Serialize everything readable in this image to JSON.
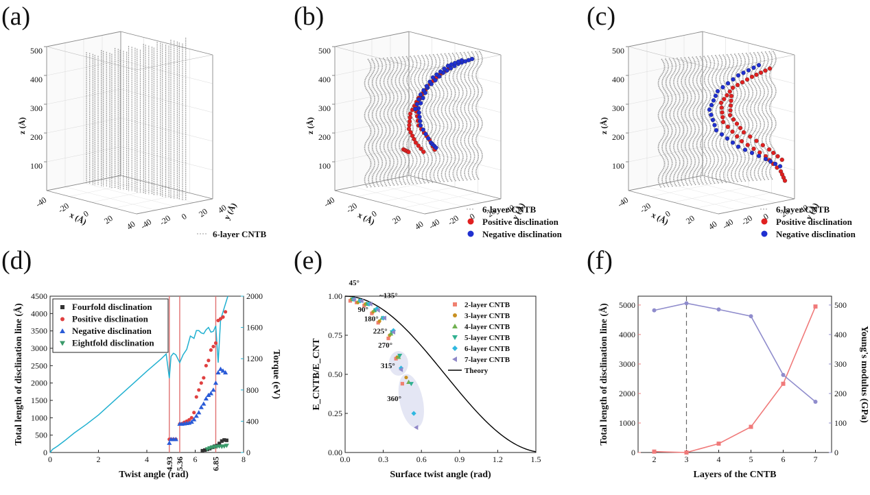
{
  "panels": {
    "a": {
      "label": "(a)"
    },
    "b": {
      "label": "(b)"
    },
    "c": {
      "label": "(c)"
    },
    "d": {
      "label": "(d)"
    },
    "e": {
      "label": "(e)"
    },
    "f": {
      "label": "(f)"
    }
  },
  "threeD": {
    "zlabel": "z (Å)",
    "xlabel": "x (Å)",
    "ylabel": "y (Å)",
    "zticks": [
      "500",
      "400",
      "300",
      "200",
      "100"
    ],
    "xticks_a": [
      "-40",
      "-20",
      "0",
      "20",
      "40"
    ],
    "yticks_a": [
      "40",
      "20",
      "0",
      "-20",
      "-40"
    ],
    "xticks_bc": [
      "-40",
      "-20",
      "0",
      "20",
      "40"
    ],
    "yticks_bc": [
      "40",
      "20",
      "0",
      "-20",
      "-40"
    ],
    "legend_cntb": "6-layer CNTB",
    "legend_pos": "Positive disclination",
    "legend_neg": "Negative disclination",
    "colors": {
      "cntb": "#8a8a8a",
      "pos": "#e02020",
      "neg": "#2030d0"
    }
  },
  "chart_data": [
    {
      "id": "d",
      "type": "scatter",
      "xlabel": "Twist angle (rad)",
      "ylabel": "Total length of disclination line (Å)",
      "y2label": "Torque (eV)",
      "xlim": [
        0,
        8
      ],
      "ylim": [
        0,
        4500
      ],
      "y2lim": [
        0,
        2000
      ],
      "xticks": [
        "0",
        "2",
        "4",
        "6",
        "8"
      ],
      "yticks": [
        "0",
        "500",
        "1000",
        "1500",
        "2000",
        "2500",
        "3000",
        "3500",
        "4000",
        "4500"
      ],
      "y2ticks": [
        "0",
        "400",
        "800",
        "1200",
        "1600",
        "2000"
      ],
      "vlines": [
        {
          "x": 4.93,
          "label": "4.93"
        },
        {
          "x": 5.36,
          "label": "5.36"
        },
        {
          "x": 6.85,
          "label": "6.85"
        }
      ],
      "series": [
        {
          "name": "Fourfold disclination",
          "color": "#333333",
          "marker": "square",
          "x": [
            6.3,
            6.4,
            6.5,
            6.6,
            6.7,
            6.8,
            6.9,
            7.0,
            7.1,
            7.2,
            7.3
          ],
          "y": [
            50,
            70,
            90,
            110,
            150,
            180,
            200,
            260,
            330,
            360,
            350
          ]
        },
        {
          "name": "Positive disclination",
          "color": "#e04040",
          "marker": "circle",
          "x": [
            4.93,
            5.0,
            5.1,
            5.2,
            5.36,
            5.45,
            5.55,
            5.65,
            5.75,
            5.85,
            5.95,
            6.05,
            6.15,
            6.25,
            6.35,
            6.45,
            6.55,
            6.65,
            6.75,
            6.85,
            6.95,
            7.05,
            7.15,
            7.25
          ],
          "y": [
            380,
            380,
            380,
            380,
            820,
            830,
            870,
            900,
            940,
            1000,
            1150,
            1600,
            1800,
            2000,
            2150,
            2500,
            2650,
            2950,
            3050,
            3150,
            3800,
            3850,
            3900,
            4050
          ]
        },
        {
          "name": "Negative disclination",
          "color": "#2a5bd7",
          "marker": "triangle-up",
          "x": [
            4.93,
            5.0,
            5.1,
            5.2,
            5.36,
            5.45,
            5.55,
            5.65,
            5.75,
            5.85,
            5.95,
            6.05,
            6.15,
            6.25,
            6.35,
            6.45,
            6.55,
            6.65,
            6.75,
            6.85,
            6.95,
            7.05,
            7.15,
            7.25
          ],
          "y": [
            270,
            380,
            380,
            380,
            820,
            820,
            830,
            840,
            850,
            880,
            950,
            1050,
            1150,
            1300,
            1400,
            1550,
            1650,
            1700,
            1800,
            2000,
            2300,
            2400,
            2350,
            2300
          ]
        },
        {
          "name": "Eightfold disclination",
          "color": "#3a9a6a",
          "marker": "triangle-down",
          "x": [
            6.5,
            6.6,
            6.7,
            6.8,
            6.9,
            7.0,
            7.1,
            7.2,
            7.3
          ],
          "y": [
            100,
            130,
            150,
            160,
            170,
            180,
            170,
            180,
            200
          ]
        }
      ],
      "torque": {
        "name": "Torque",
        "color": "#20b0d0",
        "x": [
          0,
          0.1,
          0.3,
          0.6,
          1.0,
          1.5,
          2.0,
          2.5,
          3.0,
          3.5,
          4.0,
          4.3,
          4.6,
          4.8,
          4.93,
          5.0,
          5.1,
          5.2,
          5.36,
          5.5,
          5.65,
          5.8,
          5.95,
          6.05,
          6.15,
          6.25,
          6.35,
          6.45,
          6.55,
          6.65,
          6.75,
          6.85,
          6.95,
          7.05,
          7.15,
          7.25,
          7.35
        ],
        "y": [
          0,
          40,
          80,
          150,
          250,
          360,
          480,
          620,
          760,
          900,
          1040,
          1120,
          1200,
          1260,
          950,
          1230,
          1270,
          1250,
          1150,
          1250,
          1320,
          1490,
          1460,
          1560,
          1560,
          1530,
          1520,
          1570,
          1600,
          1540,
          1550,
          1620,
          1150,
          1700,
          1800,
          1900,
          2000
        ]
      }
    },
    {
      "id": "e",
      "type": "scatter",
      "xlabel": "Surface twist angle (rad)",
      "ylabel": "E_CNTB/E_CNT",
      "xlim": [
        0,
        1.5
      ],
      "ylim": [
        0,
        1.0
      ],
      "xticks": [
        "0.0",
        "0.3",
        "0.6",
        "0.9",
        "1.2",
        "1.5"
      ],
      "yticks": [
        "0.00",
        "0.25",
        "0.50",
        "0.75",
        "1.00"
      ],
      "annotations": [
        "45°",
        "90°",
        "~135°",
        "180°",
        "225°",
        "270°",
        "315°",
        "360°"
      ],
      "theory": {
        "name": "Theory",
        "color": "#000000"
      },
      "series": [
        {
          "name": "2-layer CNTB",
          "color": "#f08070",
          "marker": "square",
          "x": [
            0.04,
            0.09,
            0.15,
            0.21,
            0.26,
            0.34,
            0.4,
            0.45
          ],
          "y": [
            0.97,
            0.96,
            0.94,
            0.89,
            0.83,
            0.73,
            0.6,
            0.44
          ]
        },
        {
          "name": "3-layer CNTB",
          "color": "#c89020",
          "marker": "circle",
          "x": [
            0.05,
            0.1,
            0.16,
            0.22,
            0.27,
            0.35,
            0.41,
            0.48
          ],
          "y": [
            0.98,
            0.96,
            0.95,
            0.9,
            0.84,
            0.75,
            0.61,
            0.48
          ]
        },
        {
          "name": "4-layer CNTB",
          "color": "#70b050",
          "marker": "triangle-up",
          "x": [
            0.06,
            0.11,
            0.17,
            0.23,
            0.29,
            0.36,
            0.42,
            0.5
          ],
          "y": [
            0.98,
            0.97,
            0.95,
            0.91,
            0.86,
            0.76,
            0.61,
            0.45
          ]
        },
        {
          "name": "5-layer CNTB",
          "color": "#30b090",
          "marker": "triangle-down",
          "x": [
            0.06,
            0.12,
            0.18,
            0.24,
            0.3,
            0.37,
            0.43,
            0.52
          ],
          "y": [
            0.98,
            0.97,
            0.95,
            0.91,
            0.86,
            0.77,
            0.62,
            0.44
          ]
        },
        {
          "name": "6-layer CNTB",
          "color": "#30b8e0",
          "marker": "diamond",
          "x": [
            0.07,
            0.12,
            0.19,
            0.25,
            0.3,
            0.38,
            0.44,
            0.54
          ],
          "y": [
            0.98,
            0.97,
            0.95,
            0.92,
            0.86,
            0.78,
            0.54,
            0.25
          ]
        },
        {
          "name": "7-layer CNTB",
          "color": "#9088c8",
          "marker": "triangle-left",
          "x": [
            0.07,
            0.13,
            0.2,
            0.26,
            0.31,
            0.38,
            0.44,
            0.56
          ],
          "y": [
            0.98,
            0.97,
            0.95,
            0.91,
            0.86,
            0.77,
            0.53,
            0.16
          ]
        }
      ]
    },
    {
      "id": "f",
      "type": "line",
      "xlabel": "Layers of the CNTB",
      "ylabel": "Total length of disclination line (Å)",
      "y2label": "Young's modulus (GPa)",
      "xlim": [
        1.5,
        7.5
      ],
      "ylim": [
        0,
        5300
      ],
      "y2lim": [
        0,
        530
      ],
      "xticks": [
        "2",
        "3",
        "4",
        "5",
        "6",
        "7"
      ],
      "yticks": [
        "0",
        "1000",
        "2000",
        "3000",
        "4000",
        "5000"
      ],
      "y2ticks": [
        "0",
        "100",
        "200",
        "300",
        "400",
        "500"
      ],
      "dashed_x": 3,
      "series": [
        {
          "name": "Total length of disclination line",
          "color": "#f07a7a",
          "marker": "square",
          "x": [
            2,
            3,
            4,
            5,
            6,
            7
          ],
          "y": [
            30,
            0,
            300,
            870,
            2330,
            4950
          ]
        },
        {
          "name": "Young's modulus",
          "color": "#8f8ccc",
          "marker": "circle",
          "axis": "y2",
          "x": [
            2,
            3,
            4,
            5,
            6,
            7
          ],
          "y": [
            482,
            506,
            485,
            462,
            263,
            172
          ]
        }
      ]
    }
  ]
}
